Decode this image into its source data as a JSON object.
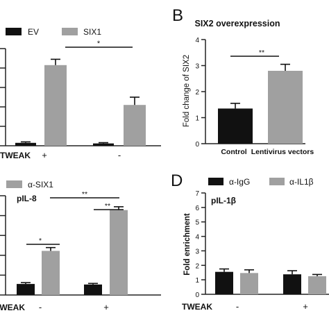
{
  "panels": {
    "A": {
      "letter": ""
    },
    "B": {
      "letter": "B"
    },
    "C": {
      "letter": ""
    },
    "D": {
      "letter": "D"
    }
  },
  "colors": {
    "black_bar": "#111111",
    "grey_bar": "#a0a0a0",
    "axis": "#222222"
  },
  "chart_data": [
    {
      "panel": "A",
      "type": "bar",
      "title": "",
      "xlabel": "",
      "ylabel": "",
      "grid": false,
      "legend": "top-left",
      "series": [
        {
          "name": "EV",
          "color": "#111111",
          "values": [
            0.15,
            0.12
          ]
        },
        {
          "name": "SIX1",
          "color": "#a0a0a0",
          "values": [
            4.15,
            2.1
          ]
        }
      ],
      "errors": {
        "EV": [
          0.05,
          0.04
        ],
        "SIX1": [
          0.3,
          0.4
        ]
      },
      "condition_row": {
        "label": "TWEAK",
        "values": [
          "+",
          "-"
        ]
      },
      "ylim": [
        0,
        5
      ],
      "significance": [
        {
          "label": "*",
          "from_group": 0,
          "to_group": 1
        }
      ]
    },
    {
      "panel": "B",
      "type": "bar",
      "title": "SIX2 overexpression",
      "xlabel": "",
      "ylabel": "Fold change of SIX2",
      "grid": false,
      "categories": [
        "Control",
        "Lentivirus vectors"
      ],
      "values": [
        1.35,
        2.8
      ],
      "errors": [
        0.2,
        0.25
      ],
      "colors": [
        "#111111",
        "#a0a0a0"
      ],
      "ylim": [
        0,
        4
      ],
      "yticks": [
        0,
        1,
        2,
        3,
        4
      ],
      "significance": [
        {
          "label": "**",
          "from": 0,
          "to": 1
        }
      ]
    },
    {
      "panel": "C",
      "type": "bar",
      "title": "pIL-8",
      "xlabel": "",
      "ylabel": "",
      "grid": false,
      "legend": "top-left",
      "series": [
        {
          "name": "",
          "color": "#111111",
          "values": [
            1.0,
            0.95
          ]
        },
        {
          "name": "α-SIX1",
          "color": "#a0a0a0",
          "values": [
            4.0,
            7.7
          ]
        }
      ],
      "errors": {
        "black": [
          0.12,
          0.1
        ],
        "grey": [
          0.3,
          0.3
        ]
      },
      "condition_row": {
        "label": "TWEAK",
        "values": [
          "-",
          "+"
        ]
      },
      "ylim": [
        0,
        9
      ],
      "significance": [
        {
          "label": "*",
          "type": "within_group_0"
        },
        {
          "label": "**",
          "type": "within_group_1"
        },
        {
          "label": "**",
          "type": "between_grey"
        }
      ]
    },
    {
      "panel": "D",
      "type": "bar",
      "title": "pIL-1β",
      "xlabel": "",
      "ylabel": "Fold enrichment",
      "grid": false,
      "legend": "top-left",
      "series": [
        {
          "name": "α-IgG",
          "color": "#111111",
          "values": [
            1.55,
            1.38
          ]
        },
        {
          "name": "α-IL1β",
          "color": "#a0a0a0",
          "values": [
            1.47,
            1.25
          ]
        }
      ],
      "errors": {
        "α-IgG": [
          0.2,
          0.25
        ],
        "α-IL1β": [
          0.22,
          0.12
        ]
      },
      "condition_row": {
        "label": "TWEAK",
        "values": [
          "-",
          "+"
        ]
      },
      "ylim": [
        0,
        7
      ],
      "yticks": [
        0,
        1,
        2,
        3,
        4,
        5,
        6,
        7
      ]
    }
  ]
}
